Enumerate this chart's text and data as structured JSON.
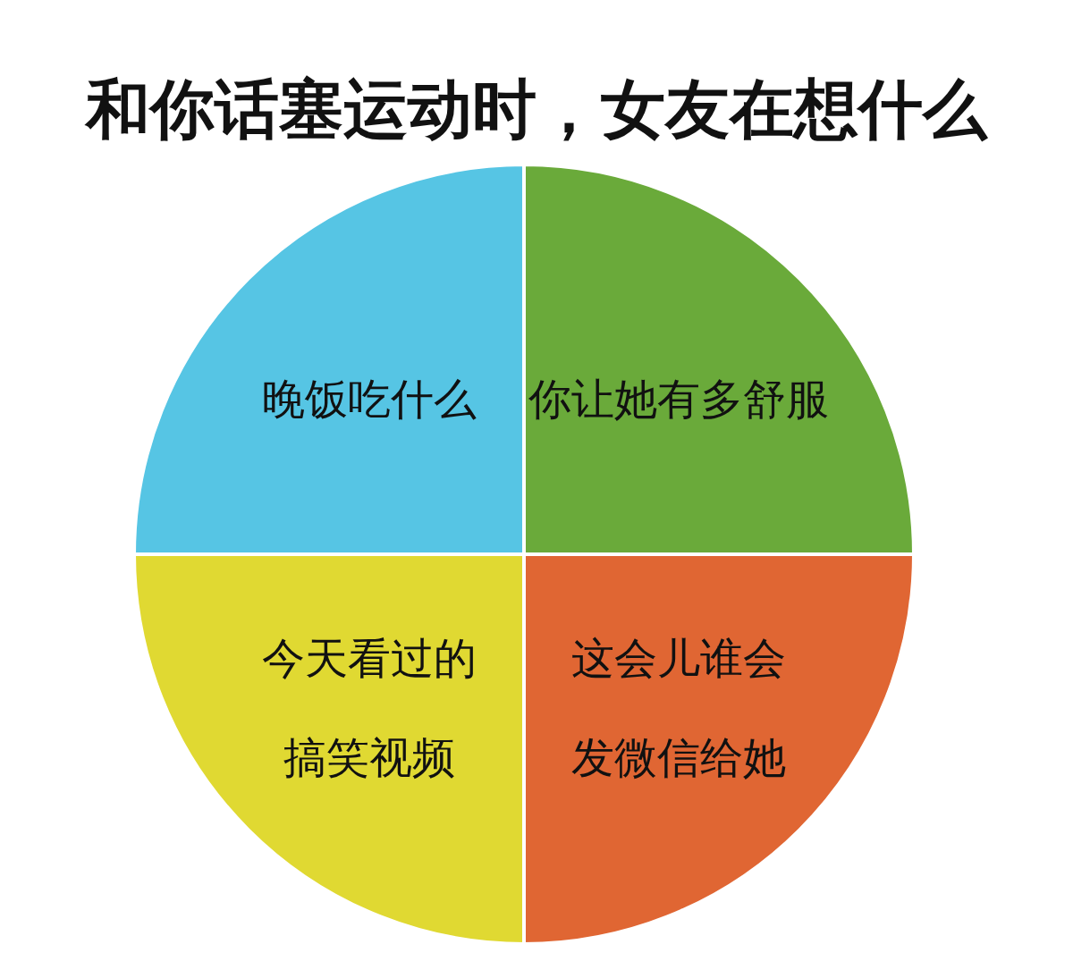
{
  "chart_data": {
    "type": "pie",
    "title": "和你话塞运动时，女友在想什么",
    "categories": [
      "你让她有多舒服",
      "这会儿谁会发微信给她",
      "今天看过的搞笑视频",
      "晚饭吃什么"
    ],
    "values": [
      25,
      25,
      25,
      25
    ],
    "colors": [
      "#6aaa3a",
      "#e06633",
      "#e0d932",
      "#56c5e4"
    ],
    "legend": false
  }
}
